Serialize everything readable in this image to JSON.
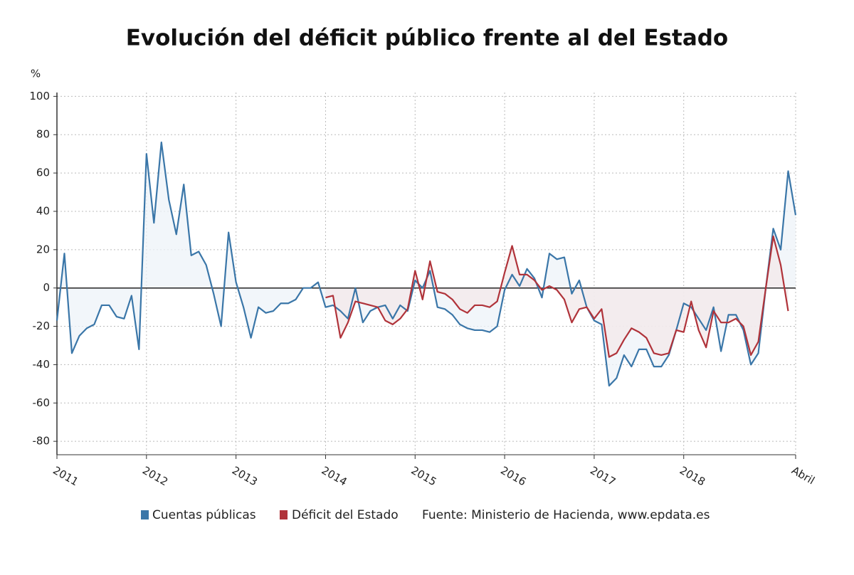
{
  "chart_data": {
    "type": "line",
    "title": "Evolución del déficit público frente al del Estado",
    "y_label": "%",
    "source": "Fuente: Ministerio de Hacienda, www.epdata.es",
    "categories": [
      "2011",
      null,
      null,
      null,
      null,
      null,
      null,
      null,
      null,
      null,
      null,
      null,
      "2012",
      null,
      null,
      null,
      null,
      null,
      null,
      null,
      null,
      null,
      null,
      null,
      "2013",
      null,
      null,
      null,
      null,
      null,
      null,
      null,
      null,
      null,
      null,
      null,
      "2014",
      null,
      null,
      null,
      null,
      null,
      null,
      null,
      null,
      null,
      null,
      null,
      "2015",
      null,
      null,
      null,
      null,
      null,
      null,
      null,
      null,
      null,
      null,
      null,
      "2016",
      null,
      null,
      null,
      null,
      null,
      null,
      null,
      null,
      null,
      null,
      null,
      "2017",
      null,
      null,
      null,
      null,
      null,
      null,
      null,
      null,
      null,
      null,
      null,
      "2018",
      null,
      null,
      null,
      null,
      null,
      null,
      null,
      null,
      null,
      null,
      null,
      null,
      null,
      null,
      "Abril"
    ],
    "series": [
      {
        "name": "Cuentas públicas",
        "color": "#3a76a8",
        "fill": "#eef3f8",
        "values": [
          -17,
          18,
          -34,
          -25,
          -21,
          -19,
          -9,
          -9,
          -15,
          -16,
          -4,
          -32,
          70,
          34,
          76,
          46,
          28,
          54,
          17,
          19,
          12,
          -3,
          -20,
          29,
          3,
          -10,
          -26,
          -10,
          -13,
          -12,
          -8,
          -8,
          -6,
          0,
          0,
          3,
          -10,
          -9,
          -12,
          -16,
          0,
          -18,
          -12,
          -10,
          -9,
          -16,
          -9,
          -12,
          4,
          0,
          9,
          -10,
          -11,
          -14,
          -19,
          -21,
          -22,
          -22,
          -23,
          -20,
          -1,
          7,
          1,
          10,
          5,
          -5,
          18,
          15,
          16,
          -3,
          4,
          -10,
          -17,
          -19,
          -51,
          -47,
          -35,
          -41,
          -32,
          -32,
          -41,
          -41,
          -35,
          -22,
          -8,
          -10,
          -16,
          -22,
          -10,
          -33,
          -14,
          -14,
          -22,
          -40,
          -34,
          0,
          31,
          20,
          61,
          38
        ]
      },
      {
        "name": "Déficit del Estado",
        "color": "#b0333a",
        "fill": "#f3e8ea",
        "values": [
          null,
          null,
          null,
          null,
          null,
          null,
          null,
          null,
          null,
          null,
          null,
          null,
          null,
          null,
          null,
          null,
          null,
          null,
          null,
          null,
          null,
          null,
          null,
          null,
          null,
          null,
          null,
          null,
          null,
          null,
          null,
          null,
          null,
          null,
          null,
          null,
          -5,
          -4,
          -26,
          -18,
          -7,
          -8,
          -9,
          -10,
          -17,
          -19,
          -16,
          -11,
          9,
          -6,
          14,
          -2,
          -3,
          -6,
          -11,
          -13,
          -9,
          -9,
          -10,
          -7,
          8,
          22,
          7,
          7,
          4,
          -1,
          1,
          -1,
          -6,
          -18,
          -11,
          -10,
          -16,
          -11,
          -36,
          -34,
          -27,
          -21,
          -23,
          -26,
          -34,
          -35,
          -34,
          -22,
          -23,
          -7,
          -22,
          -31,
          -12,
          -18,
          -18,
          -16,
          -20,
          -35,
          -28,
          0,
          27,
          12,
          -12,
          null
        ]
      }
    ],
    "ylim": [
      -87,
      102
    ],
    "yticks": [
      -80,
      -60,
      -40,
      -20,
      0,
      20,
      40,
      60,
      80,
      100
    ],
    "grid": true
  }
}
